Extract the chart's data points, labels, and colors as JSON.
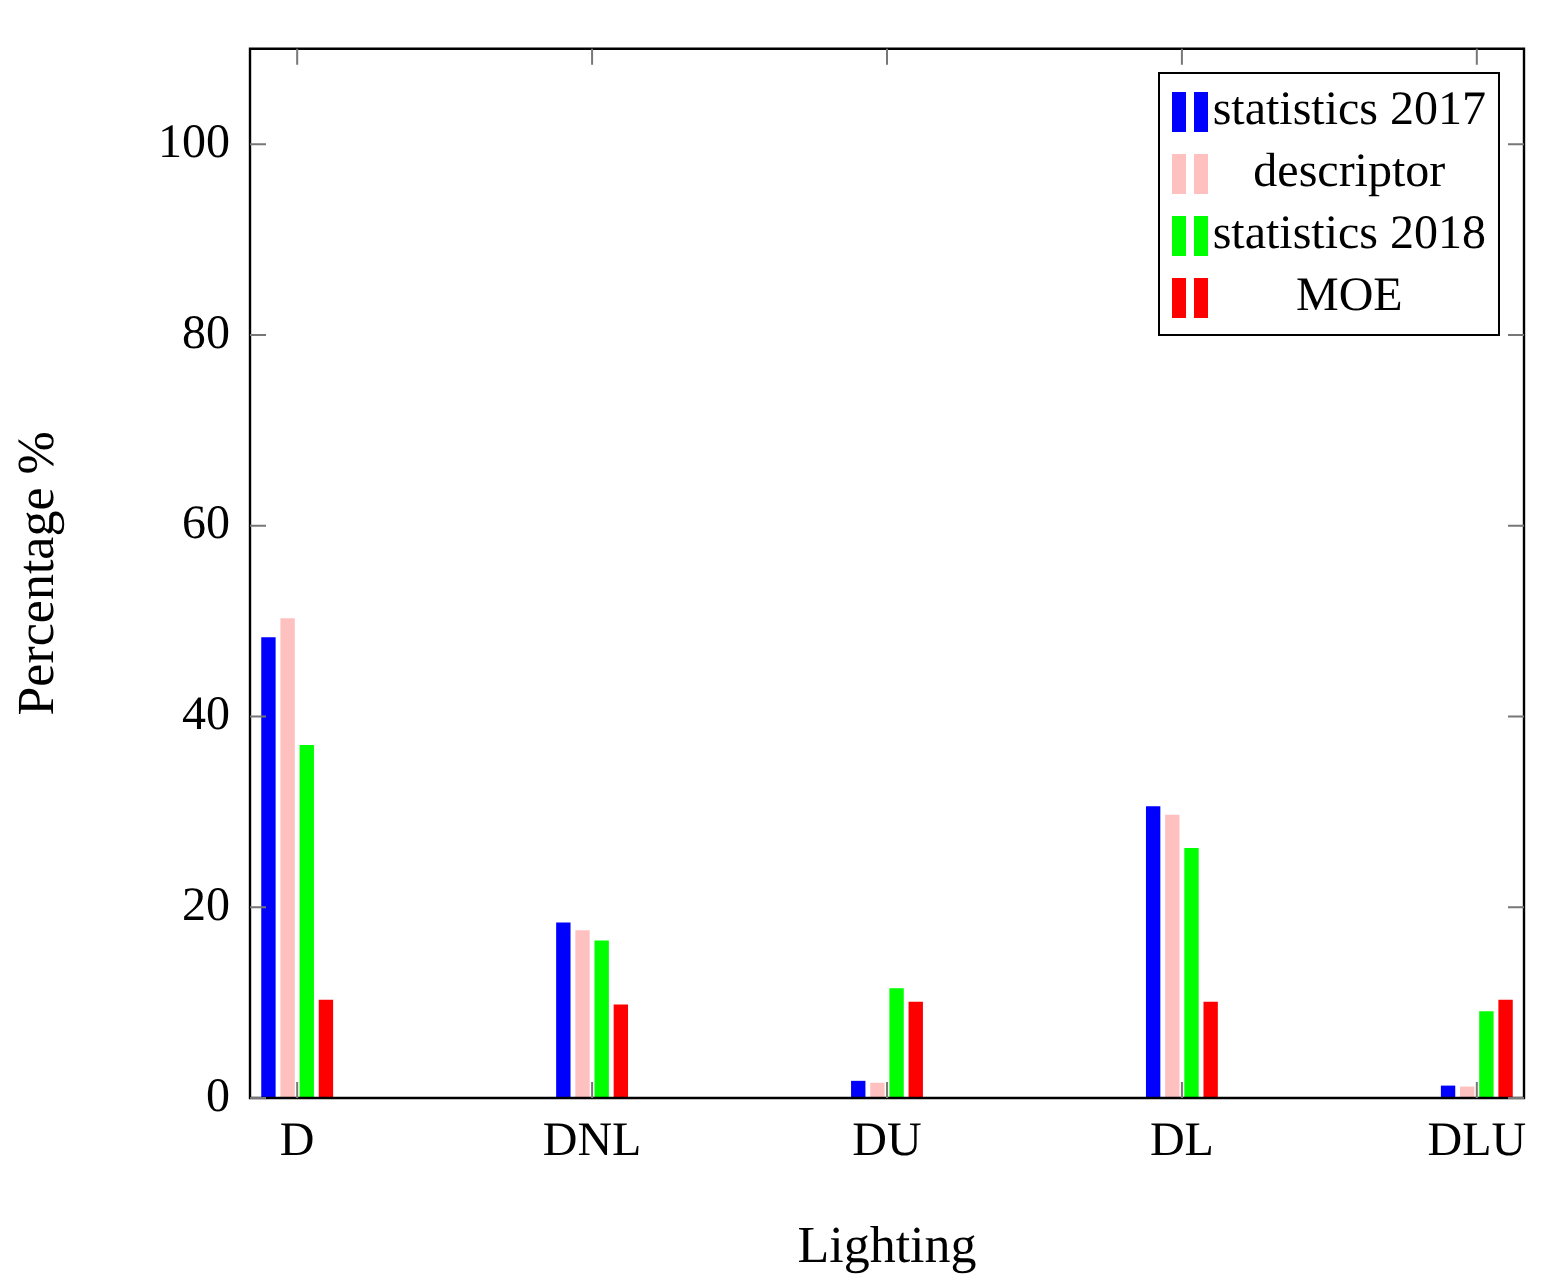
{
  "chart_data": {
    "type": "bar",
    "xlabel": "Lighting",
    "ylabel": "Percentage %",
    "categories": [
      "D",
      "DNL",
      "DU",
      "DL",
      "DLU"
    ],
    "series": [
      {
        "name": "statistics 2017",
        "color": "#0000ff",
        "values": [
          48.3,
          18.4,
          1.8,
          30.6,
          1.3
        ]
      },
      {
        "name": "descriptor",
        "color": "#ffc0c0",
        "values": [
          50.3,
          17.6,
          1.6,
          29.7,
          1.2
        ]
      },
      {
        "name": "statistics 2018",
        "color": "#00ff00",
        "values": [
          37.0,
          16.5,
          11.5,
          26.2,
          9.1
        ]
      },
      {
        "name": "MOE",
        "color": "#ff0000",
        "values": [
          10.3,
          9.8,
          10.1,
          10.1,
          10.3
        ]
      }
    ],
    "ylim": [
      0,
      110
    ],
    "yticks": [
      0,
      20,
      40,
      60,
      80,
      100
    ],
    "grid": false,
    "legend": "top right"
  }
}
